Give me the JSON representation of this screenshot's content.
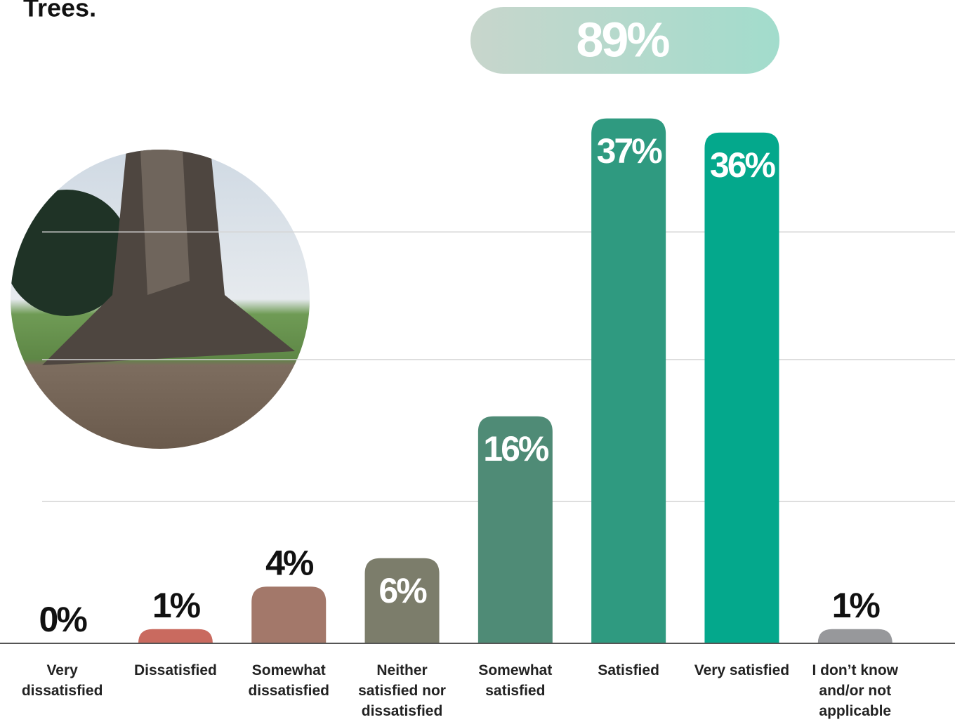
{
  "chart_data": {
    "type": "bar",
    "title": "Trees.",
    "annotation": "89%",
    "categories": [
      "Very dissatisfied",
      "Dissatisfied",
      "Somewhat dissatisfied",
      "Neither satisfied nor dissatisfied",
      "Somewhat satisfied",
      "Satisfied",
      "Very satisfied",
      "I don’t know and/or not applicable"
    ],
    "values": [
      0,
      1,
      4,
      6,
      16,
      37,
      36,
      1
    ],
    "value_labels": [
      "0%",
      "1%",
      "4%",
      "6%",
      "16%",
      "37%",
      "36%",
      "1%"
    ],
    "colors": [
      "#c96a5f",
      "#c96a5f",
      "#a3786a",
      "#7c7d6b",
      "#4f8b76",
      "#2f9a80",
      "#04a88c",
      "#97989b"
    ],
    "ylim": [
      0,
      45
    ],
    "gridlines": [
      10,
      20,
      29
    ]
  }
}
